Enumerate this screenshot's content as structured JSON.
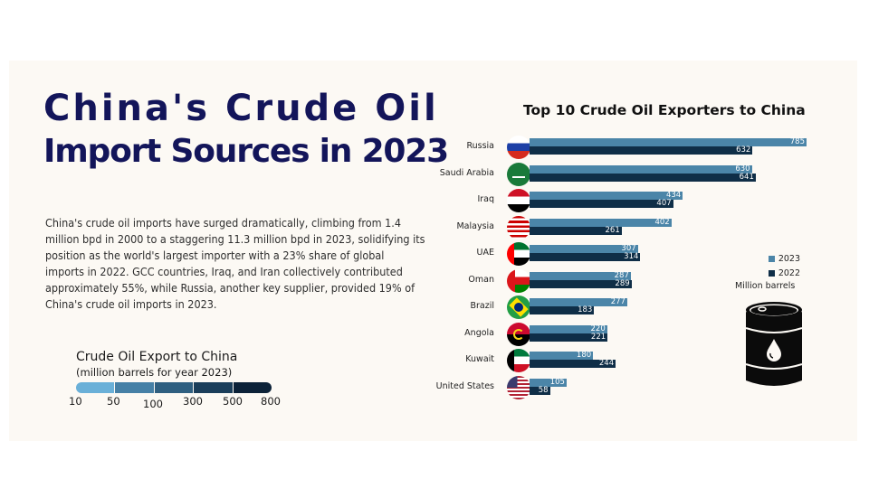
{
  "header": {
    "title_line1": "China's Crude Oil",
    "title_line2": "Import Sources in 2023"
  },
  "description": "China's crude oil imports have surged dramatically, climbing from 1.4 million bpd in 2000 to a staggering 11.3 million bpd in 2023, solidifying its position as the world's largest importer with a 23% share of global imports in 2022. GCC countries, Iraq, and Iran collectively contributed approximately 55%, while Russia, another key supplier, provided 19% of China's crude oil imports in 2023.",
  "color_scale": {
    "title": "Crude Oil Export to China",
    "subtitle": "(million barrels for year 2023)",
    "colors": [
      "#6ab0d8",
      "#4680a6",
      "#2f5f80",
      "#1b3e5a",
      "#0c2238"
    ],
    "ticks": [
      "10",
      "50",
      "100",
      "300",
      "500",
      "800"
    ]
  },
  "legend": {
    "items": [
      {
        "label": "2023",
        "color": "#4b85a8"
      },
      {
        "label": "2022",
        "color": "#0f2e47"
      }
    ],
    "unit": "Million barrels"
  },
  "icons": {
    "barrel": "oil-barrel-icon"
  },
  "chart_data": {
    "type": "bar",
    "orientation": "horizontal",
    "title": "Top 10 Crude Oil Exporters to China",
    "xlabel": "",
    "ylabel": "",
    "unit": "Million barrels",
    "categories": [
      "Russia",
      "Saudi Arabia",
      "Iraq",
      "Malaysia",
      "UAE",
      "Oman",
      "Brazil",
      "Angola",
      "Kuwait",
      "United States"
    ],
    "series": [
      {
        "name": "2023",
        "color": "#4b85a8",
        "values": [
          785,
          630,
          434,
          402,
          307,
          287,
          277,
          220,
          180,
          105
        ]
      },
      {
        "name": "2022",
        "color": "#0f2e47",
        "values": [
          632,
          641,
          407,
          261,
          314,
          289,
          183,
          221,
          244,
          58
        ]
      }
    ],
    "legend_position": "right",
    "grid": false,
    "data_labels": true
  }
}
